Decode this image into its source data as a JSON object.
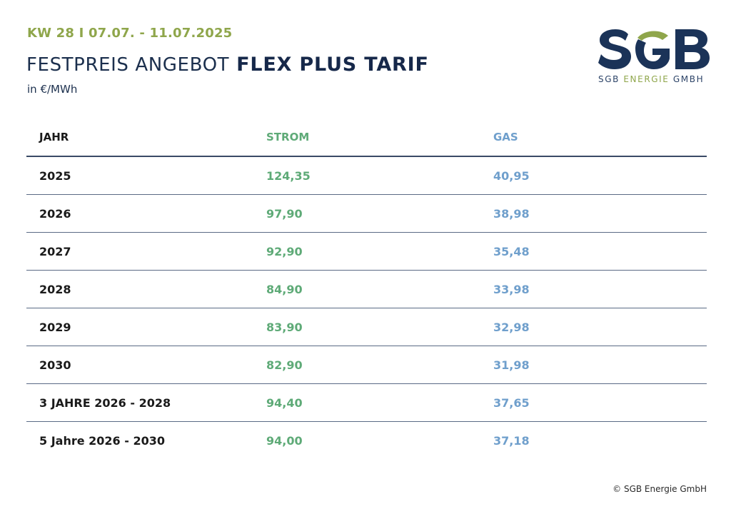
{
  "header": {
    "week": "KW 28 I 07.07. - 11.07.2025",
    "title_light": "FESTPREIS ANGEBOT",
    "title_bold": "FLEX PLUS TARIF",
    "unit": "in €/MWh"
  },
  "logo": {
    "mark": "SGB",
    "sub_prefix": "SGB ",
    "sub_accent": "ENERGIE",
    "sub_suffix": " GMBH",
    "colors": {
      "navy": "#1b3358",
      "green": "#8fa64b"
    }
  },
  "table": {
    "columns": [
      "JAHR",
      "STROM",
      "GAS"
    ],
    "rows": [
      [
        "2025",
        "124,35",
        "40,95"
      ],
      [
        "2026",
        "97,90",
        "38,98"
      ],
      [
        "2027",
        "92,90",
        "35,48"
      ],
      [
        "2028",
        "84,90",
        "33,98"
      ],
      [
        "2029",
        "83,90",
        "32,98"
      ],
      [
        "2030",
        "82,90",
        "31,98"
      ],
      [
        "3 JAHRE 2026 - 2028",
        "94,40",
        "37,65"
      ],
      [
        "5 Jahre 2026 - 2030",
        "94,00",
        "37,18"
      ]
    ]
  },
  "colors": {
    "strom": "#5eaa77",
    "gas": "#6f9fcc",
    "week": "#8fa64b"
  },
  "footer": "© SGB Energie GmbH"
}
